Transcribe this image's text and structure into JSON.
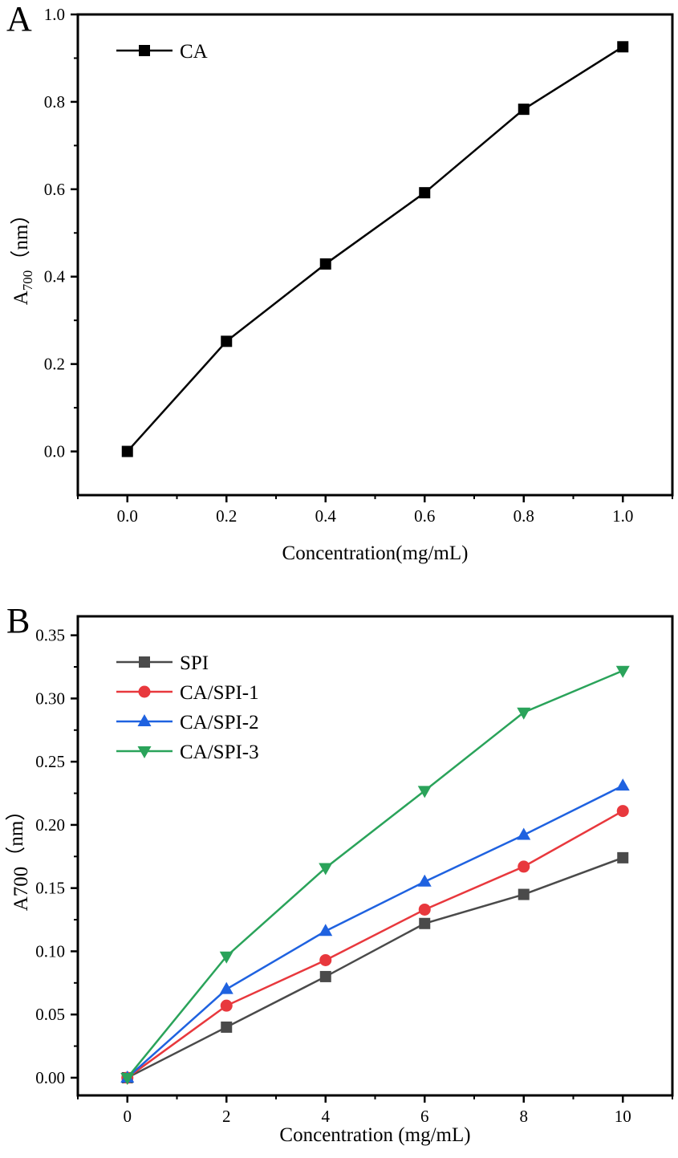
{
  "chart_data": [
    {
      "type": "line",
      "panel_label": "A",
      "xlabel": "Concentration(mg/mL)",
      "ylabel": {
        "main": "A",
        "sub": "700",
        "rest": "（nm）"
      },
      "xlim": [
        -0.1,
        1.1
      ],
      "ylim": [
        -0.1,
        1.0
      ],
      "xticks": [
        0.0,
        0.2,
        0.4,
        0.6,
        0.8,
        1.0
      ],
      "xtick_labels": [
        "0.0",
        "0.2",
        "0.4",
        "0.6",
        "0.8",
        "1.0"
      ],
      "yticks": [
        0.0,
        0.2,
        0.4,
        0.6,
        0.8,
        1.0
      ],
      "ytick_labels": [
        "0.0",
        "0.2",
        "0.4",
        "0.6",
        "0.8",
        "1.0"
      ],
      "legend_position": "top-left",
      "x": [
        0.0,
        0.2,
        0.4,
        0.6,
        0.8,
        1.0
      ],
      "series": [
        {
          "name": "CA",
          "color": "#000000",
          "marker": "square",
          "values": [
            0.0,
            0.252,
            0.429,
            0.592,
            0.783,
            0.926
          ]
        }
      ]
    },
    {
      "type": "line",
      "panel_label": "B",
      "xlabel": "Concentration (mg/mL)",
      "ylabel": {
        "main": "A700",
        "sub": "",
        "rest": "（nm）"
      },
      "xlim": [
        -1,
        11
      ],
      "ylim": [
        -0.014,
        0.365
      ],
      "xticks": [
        0,
        2,
        4,
        6,
        8,
        10
      ],
      "xtick_labels": [
        "0",
        "2",
        "4",
        "6",
        "8",
        "10"
      ],
      "yticks": [
        0.0,
        0.05,
        0.1,
        0.15,
        0.2,
        0.25,
        0.3,
        0.35
      ],
      "ytick_labels": [
        "0.00",
        "0.05",
        "0.10",
        "0.15",
        "0.20",
        "0.25",
        "0.30",
        "0.35"
      ],
      "legend_position": "top-left",
      "x": [
        0,
        2,
        4,
        6,
        8,
        10
      ],
      "series": [
        {
          "name": "SPI",
          "color": "#4a4a4a",
          "marker": "square",
          "values": [
            0.0,
            0.04,
            0.08,
            0.122,
            0.145,
            0.174
          ]
        },
        {
          "name": "CA/SPI-1",
          "color": "#e8383d",
          "marker": "circle",
          "values": [
            0.0,
            0.057,
            0.093,
            0.133,
            0.167,
            0.211
          ]
        },
        {
          "name": "CA/SPI-2",
          "color": "#1f62e0",
          "marker": "triangle-up",
          "values": [
            0.0,
            0.07,
            0.116,
            0.155,
            0.192,
            0.231
          ]
        },
        {
          "name": "CA/SPI-3",
          "color": "#2aa35a",
          "marker": "triangle-down",
          "values": [
            0.0,
            0.096,
            0.166,
            0.227,
            0.289,
            0.322
          ]
        }
      ]
    }
  ]
}
